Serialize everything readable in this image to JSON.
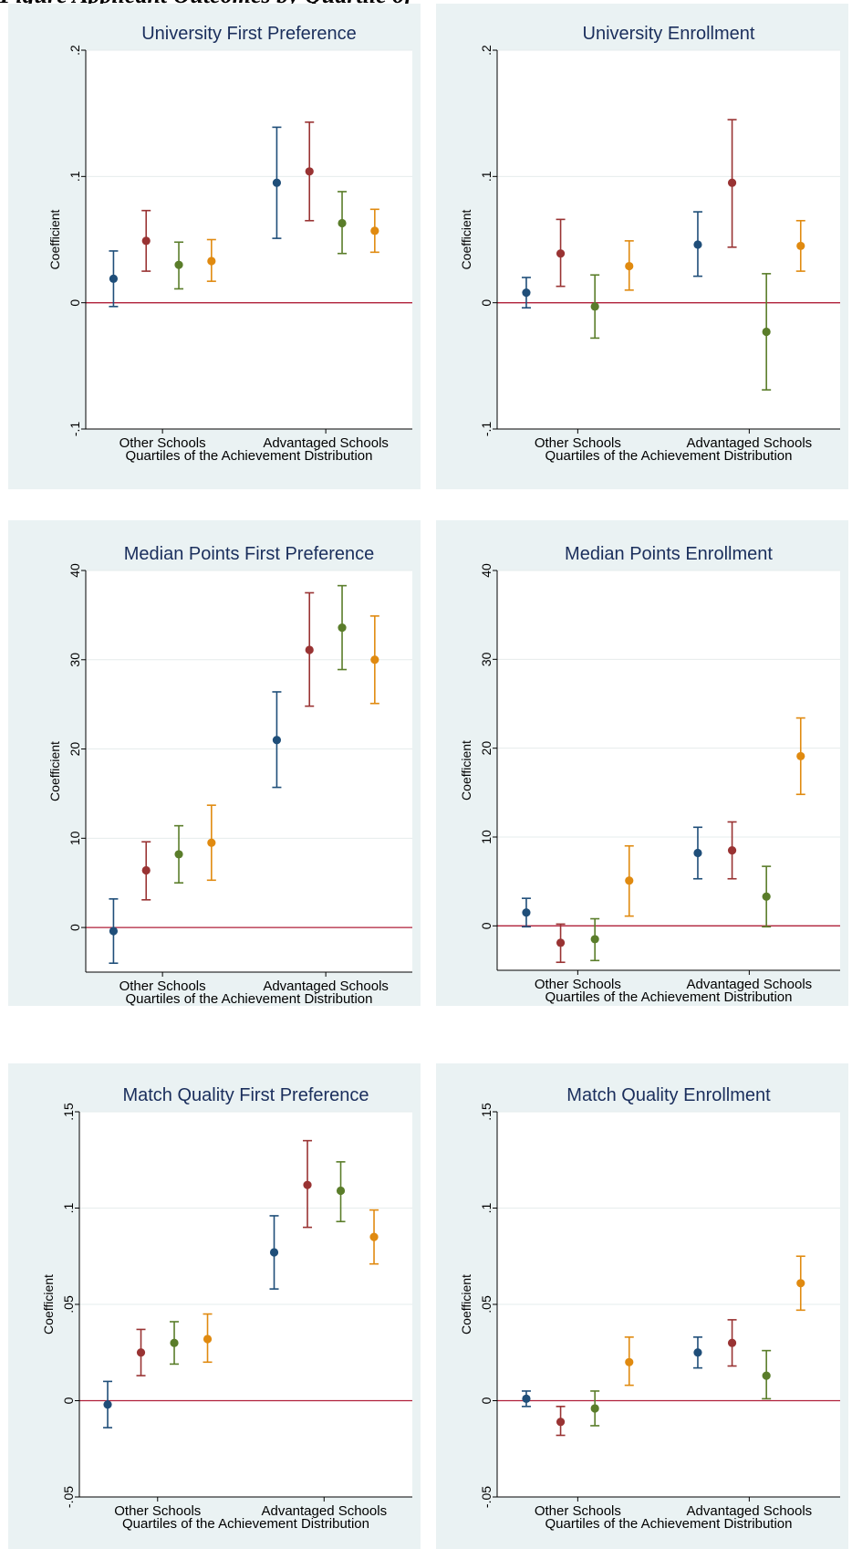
{
  "header": {
    "text": "Figure Applicant Outcomes by Quartile of"
  },
  "colors": {
    "q1": "#1f4e79",
    "q2": "#993333",
    "q3": "#5a7d2a",
    "q4": "#e08a10",
    "zero_line": "#b0203a",
    "title": "#1a2e5c"
  },
  "chart_data": [
    {
      "type": "scatter",
      "title": "University First Preference",
      "ylabel": "Coefficient",
      "xlabel": "Quartiles of the Achievement Distribution",
      "categories": [
        "Other Schools",
        "Advantaged Schools"
      ],
      "ylim": [
        -0.1,
        0.2
      ],
      "yticks": [
        -0.1,
        0,
        0.1,
        0.2
      ],
      "yticklabels": [
        "-.1",
        "0",
        ".1",
        ".2"
      ],
      "points": [
        {
          "cat": 0,
          "q": 1,
          "est": 0.019,
          "lo": -0.003,
          "hi": 0.041
        },
        {
          "cat": 0,
          "q": 2,
          "est": 0.049,
          "lo": 0.025,
          "hi": 0.073
        },
        {
          "cat": 0,
          "q": 3,
          "est": 0.03,
          "lo": 0.011,
          "hi": 0.048
        },
        {
          "cat": 0,
          "q": 4,
          "est": 0.033,
          "lo": 0.017,
          "hi": 0.05
        },
        {
          "cat": 1,
          "q": 1,
          "est": 0.095,
          "lo": 0.051,
          "hi": 0.139
        },
        {
          "cat": 1,
          "q": 2,
          "est": 0.104,
          "lo": 0.065,
          "hi": 0.143
        },
        {
          "cat": 1,
          "q": 3,
          "est": 0.063,
          "lo": 0.039,
          "hi": 0.088
        },
        {
          "cat": 1,
          "q": 4,
          "est": 0.057,
          "lo": 0.04,
          "hi": 0.074
        }
      ]
    },
    {
      "type": "scatter",
      "title": "University Enrollment",
      "ylabel": "Coefficient",
      "xlabel": "Quartiles of the Achievement Distribution",
      "categories": [
        "Other Schools",
        "Advantaged Schools"
      ],
      "ylim": [
        -0.1,
        0.2
      ],
      "yticks": [
        -0.1,
        0,
        0.1,
        0.2
      ],
      "yticklabels": [
        "-.1",
        "0",
        ".1",
        ".2"
      ],
      "points": [
        {
          "cat": 0,
          "q": 1,
          "est": 0.008,
          "lo": -0.004,
          "hi": 0.02
        },
        {
          "cat": 0,
          "q": 2,
          "est": 0.039,
          "lo": 0.013,
          "hi": 0.066
        },
        {
          "cat": 0,
          "q": 3,
          "est": -0.003,
          "lo": -0.028,
          "hi": 0.022
        },
        {
          "cat": 0,
          "q": 4,
          "est": 0.029,
          "lo": 0.01,
          "hi": 0.049
        },
        {
          "cat": 1,
          "q": 1,
          "est": 0.046,
          "lo": 0.021,
          "hi": 0.072
        },
        {
          "cat": 1,
          "q": 2,
          "est": 0.095,
          "lo": 0.044,
          "hi": 0.145
        },
        {
          "cat": 1,
          "q": 3,
          "est": -0.023,
          "lo": -0.069,
          "hi": 0.023
        },
        {
          "cat": 1,
          "q": 4,
          "est": 0.045,
          "lo": 0.025,
          "hi": 0.065
        }
      ]
    },
    {
      "type": "scatter",
      "title": "Median Points First Preference",
      "ylabel": "Coefficient",
      "xlabel": "Quartiles of the Achievement Distribution",
      "categories": [
        "Other Schools",
        "Advantaged Schools"
      ],
      "ylim": [
        -5,
        40
      ],
      "yticks": [
        0,
        10,
        20,
        30,
        40
      ],
      "yticklabels": [
        "0",
        "10",
        "20",
        "30",
        "40"
      ],
      "points": [
        {
          "cat": 0,
          "q": 1,
          "est": -0.4,
          "lo": -4.0,
          "hi": 3.2
        },
        {
          "cat": 0,
          "q": 2,
          "est": 6.4,
          "lo": 3.1,
          "hi": 9.6
        },
        {
          "cat": 0,
          "q": 3,
          "est": 8.2,
          "lo": 5.0,
          "hi": 11.4
        },
        {
          "cat": 0,
          "q": 4,
          "est": 9.5,
          "lo": 5.3,
          "hi": 13.7
        },
        {
          "cat": 1,
          "q": 1,
          "est": 21.0,
          "lo": 15.7,
          "hi": 26.4
        },
        {
          "cat": 1,
          "q": 2,
          "est": 31.1,
          "lo": 24.8,
          "hi": 37.5
        },
        {
          "cat": 1,
          "q": 3,
          "est": 33.6,
          "lo": 28.9,
          "hi": 38.3
        },
        {
          "cat": 1,
          "q": 4,
          "est": 30.0,
          "lo": 25.1,
          "hi": 34.9
        }
      ]
    },
    {
      "type": "scatter",
      "title": "Median Points Enrollment",
      "ylabel": "Coefficient",
      "xlabel": "Quartiles of the Achievement Distribution",
      "categories": [
        "Other Schools",
        "Advantaged Schools"
      ],
      "ylim": [
        -5,
        40
      ],
      "yticks": [
        0,
        10,
        20,
        30,
        40
      ],
      "yticklabels": [
        "0",
        "10",
        "20",
        "30",
        "40"
      ],
      "points": [
        {
          "cat": 0,
          "q": 1,
          "est": 1.5,
          "lo": -0.1,
          "hi": 3.1
        },
        {
          "cat": 0,
          "q": 2,
          "est": -1.9,
          "lo": -4.1,
          "hi": 0.2
        },
        {
          "cat": 0,
          "q": 3,
          "est": -1.5,
          "lo": -3.9,
          "hi": 0.8
        },
        {
          "cat": 0,
          "q": 4,
          "est": 5.1,
          "lo": 1.1,
          "hi": 9.0
        },
        {
          "cat": 1,
          "q": 1,
          "est": 8.2,
          "lo": 5.3,
          "hi": 11.1
        },
        {
          "cat": 1,
          "q": 2,
          "est": 8.5,
          "lo": 5.3,
          "hi": 11.7
        },
        {
          "cat": 1,
          "q": 3,
          "est": 3.3,
          "lo": -0.1,
          "hi": 6.7
        },
        {
          "cat": 1,
          "q": 4,
          "est": 19.1,
          "lo": 14.8,
          "hi": 23.4
        }
      ]
    },
    {
      "type": "scatter",
      "title": "Match Quality First Preference",
      "ylabel": "Coefficient",
      "xlabel": "Quartiles of the Achievement Distribution",
      "categories": [
        "Other Schools",
        "Advantaged Schools"
      ],
      "ylim": [
        -0.05,
        0.15
      ],
      "yticks": [
        -0.05,
        0,
        0.05,
        0.1,
        0.15
      ],
      "yticklabels": [
        "-.05",
        "0",
        ".05",
        ".1",
        ".15"
      ],
      "points": [
        {
          "cat": 0,
          "q": 1,
          "est": -0.002,
          "lo": -0.014,
          "hi": 0.01
        },
        {
          "cat": 0,
          "q": 2,
          "est": 0.025,
          "lo": 0.013,
          "hi": 0.037
        },
        {
          "cat": 0,
          "q": 3,
          "est": 0.03,
          "lo": 0.019,
          "hi": 0.041
        },
        {
          "cat": 0,
          "q": 4,
          "est": 0.032,
          "lo": 0.02,
          "hi": 0.045
        },
        {
          "cat": 1,
          "q": 1,
          "est": 0.077,
          "lo": 0.058,
          "hi": 0.096
        },
        {
          "cat": 1,
          "q": 2,
          "est": 0.112,
          "lo": 0.09,
          "hi": 0.135
        },
        {
          "cat": 1,
          "q": 3,
          "est": 0.109,
          "lo": 0.093,
          "hi": 0.124
        },
        {
          "cat": 1,
          "q": 4,
          "est": 0.085,
          "lo": 0.071,
          "hi": 0.099
        }
      ]
    },
    {
      "type": "scatter",
      "title": "Match Quality Enrollment",
      "ylabel": "Coefficient",
      "xlabel": "Quartiles of the Achievement Distribution",
      "categories": [
        "Other Schools",
        "Advantaged Schools"
      ],
      "ylim": [
        -0.05,
        0.15
      ],
      "yticks": [
        -0.05,
        0,
        0.05,
        0.1,
        0.15
      ],
      "yticklabels": [
        "-.05",
        "0",
        ".05",
        ".1",
        ".15"
      ],
      "points": [
        {
          "cat": 0,
          "q": 1,
          "est": 0.001,
          "lo": -0.003,
          "hi": 0.005
        },
        {
          "cat": 0,
          "q": 2,
          "est": -0.011,
          "lo": -0.018,
          "hi": -0.003
        },
        {
          "cat": 0,
          "q": 3,
          "est": -0.004,
          "lo": -0.013,
          "hi": 0.005
        },
        {
          "cat": 0,
          "q": 4,
          "est": 0.02,
          "lo": 0.008,
          "hi": 0.033
        },
        {
          "cat": 1,
          "q": 1,
          "est": 0.025,
          "lo": 0.017,
          "hi": 0.033
        },
        {
          "cat": 1,
          "q": 2,
          "est": 0.03,
          "lo": 0.018,
          "hi": 0.042
        },
        {
          "cat": 1,
          "q": 3,
          "est": 0.013,
          "lo": 0.001,
          "hi": 0.026
        },
        {
          "cat": 1,
          "q": 4,
          "est": 0.061,
          "lo": 0.047,
          "hi": 0.075
        }
      ]
    }
  ]
}
